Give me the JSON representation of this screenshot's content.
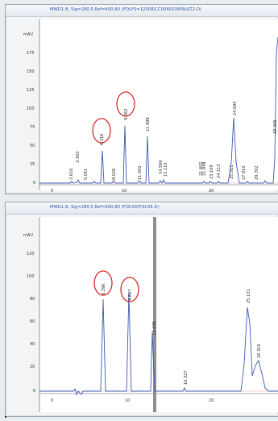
{
  "panels": [
    {
      "id": "p1",
      "title": "MWD1 B, Sig=280,5 Ref=600,80 (FOLFS=12008\\CC0040106FAULT2.D)",
      "yunit": "mAU",
      "yticks": [
        "175",
        "150",
        "125",
        "100",
        "75",
        "50",
        "25",
        "0"
      ],
      "xticks": [
        "0",
        "10",
        "20"
      ],
      "peak_labels": [
        "2.610",
        "3.303",
        "5.051",
        "6.316",
        "8.026",
        "9.363",
        "11.502",
        "11.998",
        "14.596",
        "15.110",
        "21.602",
        "21.848",
        "23.169",
        "24.113",
        "24.695",
        "25.011",
        "27.010",
        "29.702",
        "33.465"
      ],
      "circled": [
        "6.316",
        "9.363"
      ]
    },
    {
      "id": "p2",
      "title": "MWD1 B, Sig=280,5 Ref=600,80 (FOC05\\FOC05.D)",
      "yunit": "mAU",
      "yticks": [
        "120",
        "100",
        "80",
        "60",
        "40",
        "20",
        "0"
      ],
      "xticks": [
        "0",
        "10",
        "20"
      ],
      "peak_labels": [
        "6.390",
        "9.847",
        "12.439",
        "16.327",
        "25.131",
        "26.316"
      ],
      "circled": [
        "6.390",
        "9.847"
      ]
    }
  ]
}
